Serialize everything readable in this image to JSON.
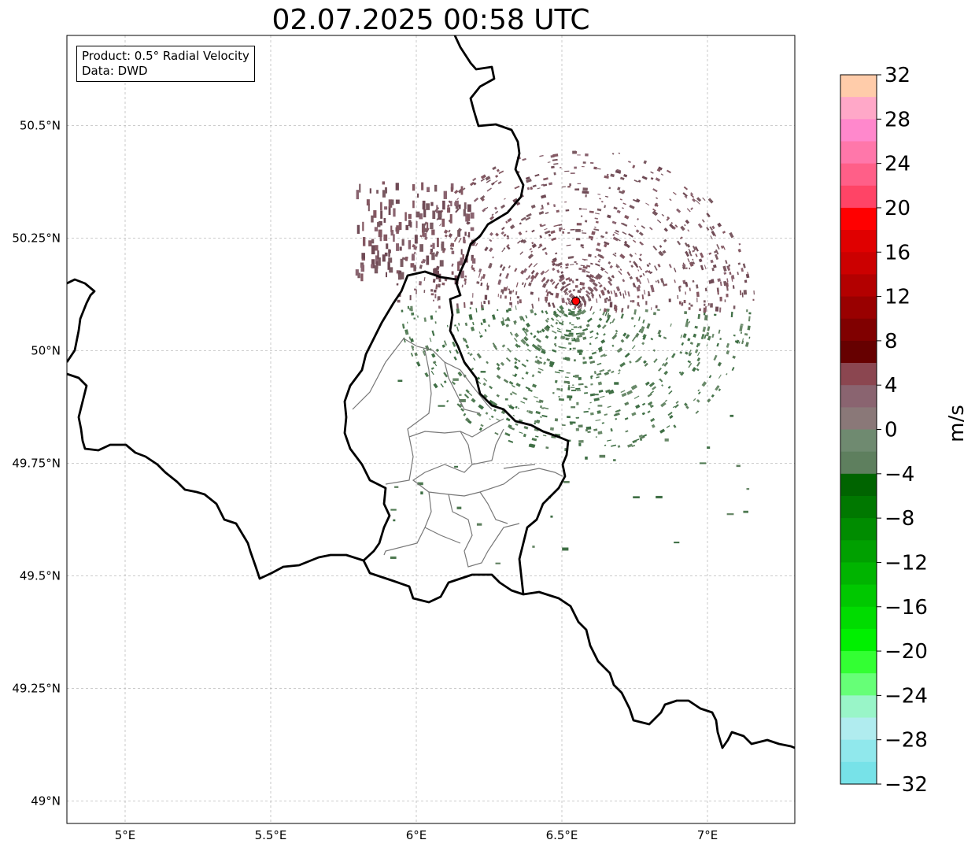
{
  "title": "02.07.2025 00:58 UTC",
  "info": {
    "product_line": "Product: 0.5° Radial Velocity",
    "data_line": "Data: DWD"
  },
  "map": {
    "extent": {
      "lon_min": 4.8,
      "lon_max": 7.3,
      "lat_min": 48.95,
      "lat_max": 50.7
    },
    "lon_ticks": [
      {
        "value": 5.0,
        "label": "5°E"
      },
      {
        "value": 5.5,
        "label": "5.5°E"
      },
      {
        "value": 6.0,
        "label": "6°E"
      },
      {
        "value": 6.5,
        "label": "6.5°E"
      },
      {
        "value": 7.0,
        "label": "7°E"
      }
    ],
    "lat_ticks": [
      {
        "value": 50.5,
        "label": "50.5°N"
      },
      {
        "value": 50.25,
        "label": "50.25°N"
      },
      {
        "value": 50.0,
        "label": "50°N"
      },
      {
        "value": 49.75,
        "label": "49.75°N"
      },
      {
        "value": 49.5,
        "label": "49.5°N"
      },
      {
        "value": 49.25,
        "label": "49.25°N"
      },
      {
        "value": 49.0,
        "label": "49°N"
      }
    ],
    "radar_site": {
      "lon": 6.548,
      "lat": 50.11,
      "color": "#ff0000"
    },
    "grid": true
  },
  "colorbar": {
    "unit": "m/s",
    "min": -32,
    "max": 32,
    "tick_labels": [
      "32",
      "28",
      "24",
      "20",
      "16",
      "12",
      "8",
      "4",
      "0",
      "−4",
      "−8",
      "−12",
      "−16",
      "−20",
      "−24",
      "−28",
      "−32"
    ],
    "colors_top_to_bottom": [
      "#ffccaa",
      "#ffa8c8",
      "#ff88cc",
      "#ff77aa",
      "#ff5f88",
      "#ff4466",
      "#ff0000",
      "#e00000",
      "#cc0000",
      "#b30000",
      "#990000",
      "#800000",
      "#660000",
      "#8b4650",
      "#8a6470",
      "#8a7878",
      "#6f8a70",
      "#5e7f5e",
      "#006400",
      "#007800",
      "#008c00",
      "#00a000",
      "#00b400",
      "#00c800",
      "#00dc00",
      "#00f000",
      "#33ff33",
      "#66ff77",
      "#99f5c8",
      "#b0ecef",
      "#90e8ec",
      "#77e2e8"
    ]
  }
}
